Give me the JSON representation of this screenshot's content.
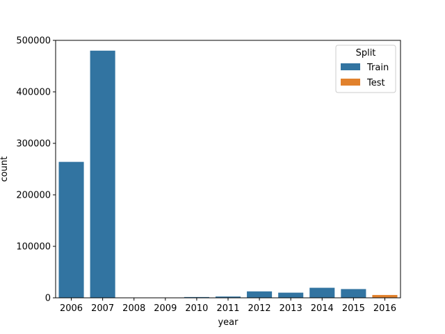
{
  "chart_data": {
    "type": "bar",
    "title": "",
    "xlabel": "year",
    "ylabel": "count",
    "categories": [
      "2006",
      "2007",
      "2008",
      "2009",
      "2010",
      "2011",
      "2012",
      "2013",
      "2014",
      "2015",
      "2016"
    ],
    "series": [
      {
        "name": "Train",
        "color": "#3274a1",
        "values": [
          264000,
          480000,
          200,
          300,
          1500,
          2500,
          12500,
          10000,
          19500,
          17000,
          null
        ]
      },
      {
        "name": "Test",
        "color": "#e1812c",
        "values": [
          null,
          null,
          null,
          null,
          null,
          null,
          null,
          null,
          null,
          null,
          5500
        ]
      }
    ],
    "ylim": [
      0,
      500000
    ],
    "yticks": [
      "0",
      "100000",
      "200000",
      "300000",
      "400000",
      "500000"
    ],
    "grid": false,
    "legend": {
      "title": "Split",
      "position": "top-right",
      "entries": [
        "Train",
        "Test"
      ]
    }
  }
}
